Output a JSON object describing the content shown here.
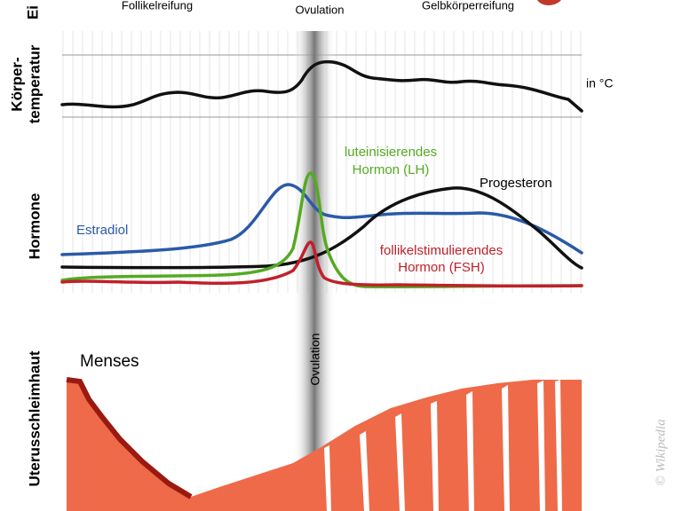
{
  "phases": {
    "follicle": "Follikelreifung",
    "ovulation": "Ovulation",
    "corpus_luteum": "Gelbkörperreifung"
  },
  "rows": {
    "ovary": "Ei",
    "temperature": [
      "Körper-",
      "temperatur"
    ],
    "hormones": "Hormone",
    "endometrium": "Uterusschleimhaut"
  },
  "temperature_unit": "in °C",
  "hormones": {
    "lh": [
      "luteinisierendes",
      "Hormon (LH)"
    ],
    "progesterone": "Progesteron",
    "estradiol": "Estradiol",
    "fsh": [
      "follikelstimulierendes",
      "Hormon (FSH)"
    ]
  },
  "menses": "Menses",
  "ovulation_band": "Ovulation",
  "credit": "© Wikipedia"
}
